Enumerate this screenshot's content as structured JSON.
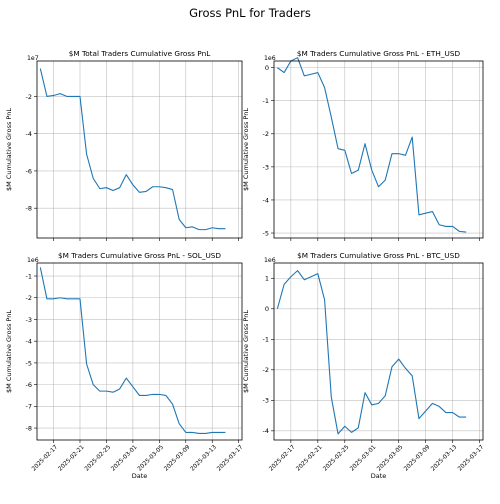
{
  "figure": {
    "suptitle": "Gross PnL for Traders"
  },
  "chart_data": [
    {
      "type": "line",
      "title": "$M Total Traders Cumulative Gross PnL",
      "xlabel": "",
      "ylabel": "$M Cumulative Gross PnL",
      "y_offset_text": "1e7",
      "x": [
        "2025-02-15",
        "2025-02-16",
        "2025-02-17",
        "2025-02-18",
        "2025-02-19",
        "2025-02-20",
        "2025-02-21",
        "2025-02-22",
        "2025-02-23",
        "2025-02-24",
        "2025-02-25",
        "2025-02-26",
        "2025-02-27",
        "2025-02-28",
        "2025-03-01",
        "2025-03-02",
        "2025-03-03",
        "2025-03-04",
        "2025-03-05",
        "2025-03-06",
        "2025-03-07",
        "2025-03-08",
        "2025-03-09",
        "2025-03-10",
        "2025-03-11",
        "2025-03-12",
        "2025-03-13",
        "2025-03-14",
        "2025-03-15",
        "2025-03-16",
        "2025-03-17"
      ],
      "values": [
        -0.5,
        -2.0,
        -1.95,
        -1.85,
        -2.0,
        -2.0,
        -2.0,
        -5.1,
        -6.4,
        -6.95,
        -6.9,
        -7.05,
        -6.9,
        -6.2,
        -6.75,
        -7.15,
        -7.1,
        -6.85,
        -6.85,
        -6.9,
        -7.0,
        -8.6,
        -9.05,
        -9.0,
        -9.15,
        -9.15,
        -9.05,
        -9.1,
        -9.1,
        null,
        null
      ],
      "ylim": [
        -9.6,
        -0.1
      ],
      "yticks": [
        "-2",
        "-4",
        "-6",
        "-8"
      ],
      "xticks": [
        "2025-02-17",
        "2025-02-21",
        "2025-02-25",
        "2025-03-01",
        "2025-03-05",
        "2025-03-09",
        "2025-03-13",
        "2025-03-17"
      ],
      "show_xticklabels": false,
      "grid": true,
      "color": "#1f77b4"
    },
    {
      "type": "line",
      "title": "$M Traders Cumulative Gross PnL - ETH_USD",
      "xlabel": "",
      "ylabel": "$M Cumulative Gross PnL",
      "y_offset_text": "1e6",
      "x": [
        "2025-02-15",
        "2025-02-16",
        "2025-02-17",
        "2025-02-18",
        "2025-02-19",
        "2025-02-20",
        "2025-02-21",
        "2025-02-22",
        "2025-02-23",
        "2025-02-24",
        "2025-02-25",
        "2025-02-26",
        "2025-02-27",
        "2025-02-28",
        "2025-03-01",
        "2025-03-02",
        "2025-03-03",
        "2025-03-04",
        "2025-03-05",
        "2025-03-06",
        "2025-03-07",
        "2025-03-08",
        "2025-03-09",
        "2025-03-10",
        "2025-03-11",
        "2025-03-12",
        "2025-03-13",
        "2025-03-14",
        "2025-03-15",
        "2025-03-16",
        "2025-03-17"
      ],
      "values": [
        0.0,
        -0.15,
        0.2,
        0.3,
        -0.25,
        -0.2,
        -0.15,
        -0.6,
        -1.5,
        -2.45,
        -2.5,
        -3.2,
        -3.1,
        -2.3,
        -3.1,
        -3.6,
        -3.4,
        -2.6,
        -2.6,
        -2.65,
        -2.1,
        -4.45,
        -4.4,
        -4.35,
        -4.75,
        -4.8,
        -4.8,
        -4.95,
        -4.97,
        null,
        null
      ],
      "ylim": [
        -5.15,
        0.2
      ],
      "yticks": [
        "0",
        "-1",
        "-2",
        "-3",
        "-4",
        "-5"
      ],
      "xticks": [
        "2025-02-17",
        "2025-02-21",
        "2025-02-25",
        "2025-03-01",
        "2025-03-05",
        "2025-03-09",
        "2025-03-13",
        "2025-03-17"
      ],
      "show_xticklabels": false,
      "grid": true,
      "color": "#1f77b4"
    },
    {
      "type": "line",
      "title": "$M Traders Cumulative Gross PnL - SOL_USD",
      "xlabel": "Date",
      "ylabel": "$M Cumulative Gross PnL",
      "y_offset_text": "1e6",
      "x": [
        "2025-02-15",
        "2025-02-16",
        "2025-02-17",
        "2025-02-18",
        "2025-02-19",
        "2025-02-20",
        "2025-02-21",
        "2025-02-22",
        "2025-02-23",
        "2025-02-24",
        "2025-02-25",
        "2025-02-26",
        "2025-02-27",
        "2025-02-28",
        "2025-03-01",
        "2025-03-02",
        "2025-03-03",
        "2025-03-04",
        "2025-03-05",
        "2025-03-06",
        "2025-03-07",
        "2025-03-08",
        "2025-03-09",
        "2025-03-10",
        "2025-03-11",
        "2025-03-12",
        "2025-03-13",
        "2025-03-14",
        "2025-03-15",
        "2025-03-16",
        "2025-03-17"
      ],
      "values": [
        -0.6,
        -2.05,
        -2.05,
        -2.0,
        -2.05,
        -2.05,
        -2.05,
        -5.05,
        -6.0,
        -6.3,
        -6.3,
        -6.35,
        -6.2,
        -5.7,
        -6.1,
        -6.5,
        -6.5,
        -6.45,
        -6.45,
        -6.5,
        -6.9,
        -7.8,
        -8.2,
        -8.2,
        -8.25,
        -8.25,
        -8.2,
        -8.2,
        -8.2,
        null,
        null
      ],
      "ylim": [
        -8.55,
        -0.4
      ],
      "yticks": [
        "-1",
        "-2",
        "-3",
        "-4",
        "-5",
        "-6",
        "-7",
        "-8"
      ],
      "xticks": [
        "2025-02-17",
        "2025-02-21",
        "2025-02-25",
        "2025-03-01",
        "2025-03-05",
        "2025-03-09",
        "2025-03-13",
        "2025-03-17"
      ],
      "show_xticklabels": true,
      "grid": true,
      "color": "#1f77b4"
    },
    {
      "type": "line",
      "title": "$M Traders Cumulative Gross PnL - BTC_USD",
      "xlabel": "Date",
      "ylabel": "$M Cumulative Gross PnL",
      "y_offset_text": "1e6",
      "x": [
        "2025-02-15",
        "2025-02-16",
        "2025-02-17",
        "2025-02-18",
        "2025-02-19",
        "2025-02-20",
        "2025-02-21",
        "2025-02-22",
        "2025-02-23",
        "2025-02-24",
        "2025-02-25",
        "2025-02-26",
        "2025-02-27",
        "2025-02-28",
        "2025-03-01",
        "2025-03-02",
        "2025-03-03",
        "2025-03-04",
        "2025-03-05",
        "2025-03-06",
        "2025-03-07",
        "2025-03-08",
        "2025-03-09",
        "2025-03-10",
        "2025-03-11",
        "2025-03-12",
        "2025-03-13",
        "2025-03-14",
        "2025-03-15",
        "2025-03-16",
        "2025-03-17"
      ],
      "values": [
        0.0,
        0.8,
        1.05,
        1.25,
        0.95,
        1.05,
        1.15,
        0.3,
        -2.9,
        -4.1,
        -3.85,
        -4.05,
        -3.9,
        -2.75,
        -3.15,
        -3.1,
        -2.85,
        -1.9,
        -1.65,
        -1.95,
        -2.2,
        -3.6,
        -3.35,
        -3.1,
        -3.2,
        -3.4,
        -3.4,
        -3.55,
        -3.55,
        null,
        null
      ],
      "ylim": [
        -4.3,
        1.5
      ],
      "yticks": [
        "1",
        "0",
        "-1",
        "-2",
        "-3",
        "-4"
      ],
      "xticks": [
        "2025-02-17",
        "2025-02-21",
        "2025-02-25",
        "2025-03-01",
        "2025-03-05",
        "2025-03-09",
        "2025-03-13",
        "2025-03-17"
      ],
      "show_xticklabels": true,
      "grid": true,
      "color": "#1f77b4"
    }
  ]
}
